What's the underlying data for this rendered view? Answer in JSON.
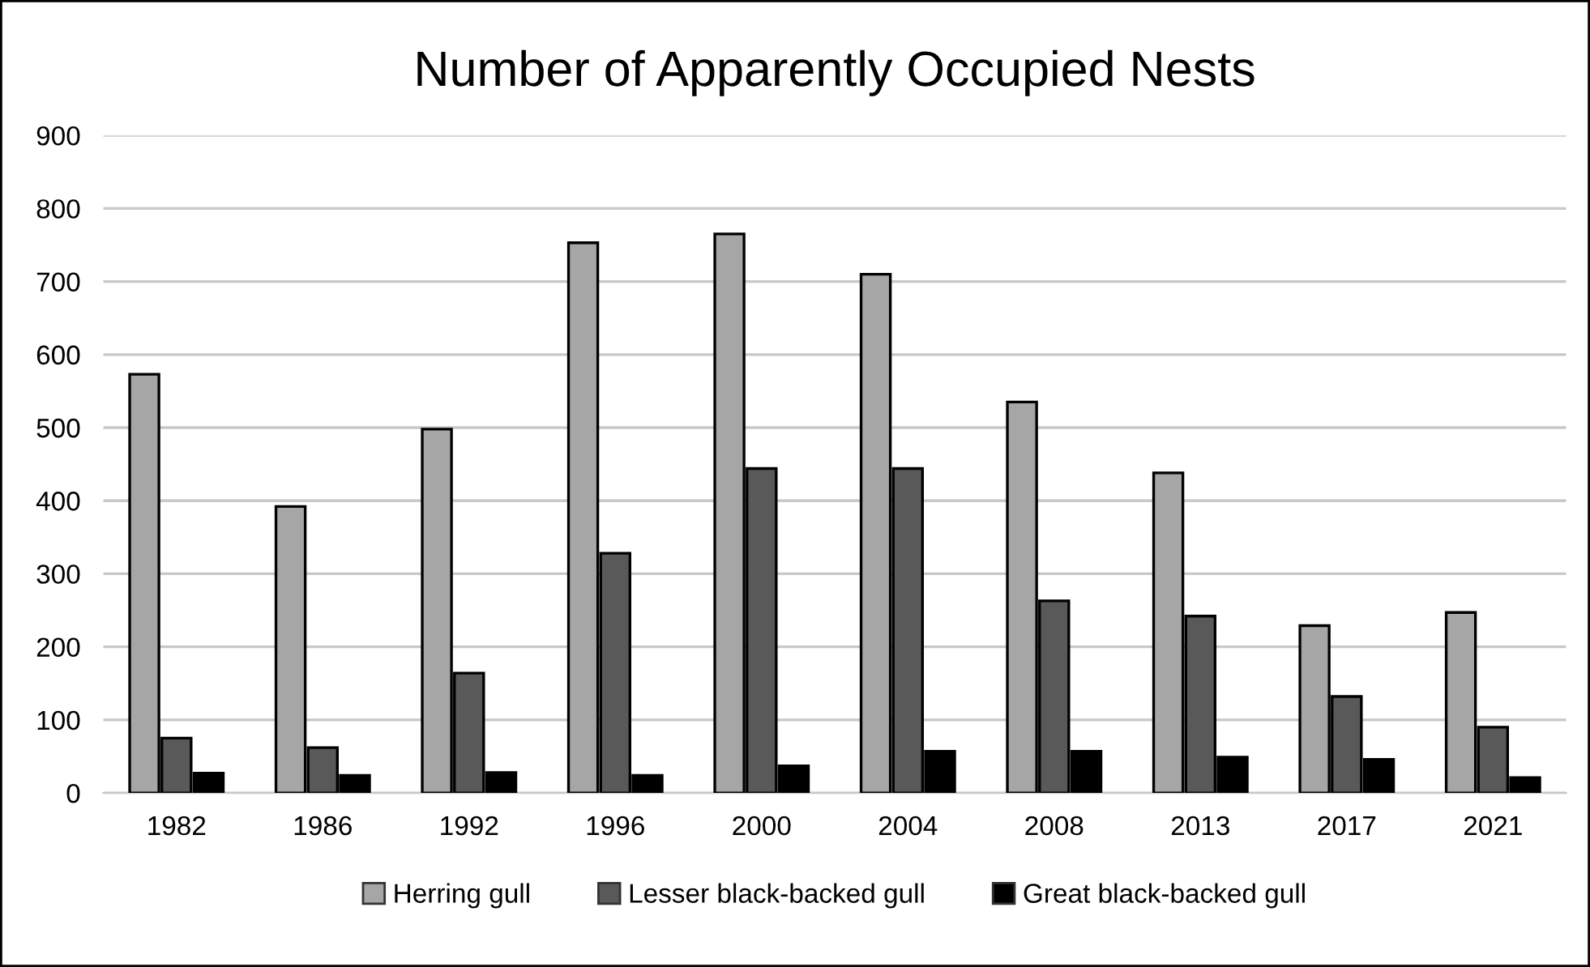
{
  "chart_data": {
    "type": "bar",
    "title": "Number of Apparently Occupied Nests",
    "categories": [
      "1982",
      "1986",
      "1992",
      "1996",
      "2000",
      "2004",
      "2008",
      "2013",
      "2017",
      "2021"
    ],
    "series": [
      {
        "name": "Herring gull",
        "color": "#a6a6a6",
        "values": [
          573,
          392,
          498,
          753,
          765,
          710,
          535,
          438,
          229,
          247
        ]
      },
      {
        "name": "Lesser black-backed gull",
        "color": "#595959",
        "values": [
          75,
          62,
          164,
          328,
          444,
          444,
          263,
          242,
          132,
          90
        ]
      },
      {
        "name": "Great black-backed gull",
        "color": "#000000",
        "values": [
          27,
          24,
          28,
          24,
          37,
          57,
          57,
          49,
          46,
          21
        ]
      }
    ],
    "ylim": [
      0,
      900
    ],
    "yticks": [
      0,
      100,
      200,
      300,
      400,
      500,
      600,
      700,
      800,
      900
    ],
    "grid": "y",
    "legend": "bottom"
  }
}
